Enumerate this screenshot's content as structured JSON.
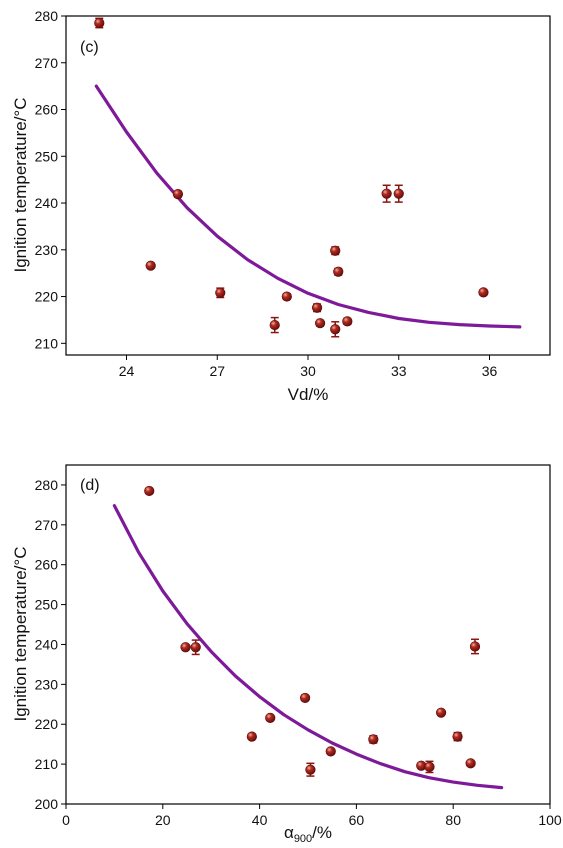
{
  "chart_data": [
    {
      "type": "scatter",
      "panel_label": "(c)",
      "xlabel": "Vd/%",
      "ylabel": "Ignition temperature/°C",
      "xlim": [
        22,
        38
      ],
      "ylim": [
        207.5,
        280
      ],
      "xticks": [
        24,
        27,
        30,
        33,
        36
      ],
      "yticks": [
        210,
        220,
        230,
        240,
        250,
        260,
        270,
        280
      ],
      "grid": false,
      "legend": "none",
      "colors": {
        "points": "#8B1414",
        "fit": "#7E1A9A"
      },
      "series": [
        {
          "kind": "points",
          "x": [
            23.1,
            24.8,
            25.7,
            27.1,
            28.9,
            29.3,
            30.3,
            30.4,
            30.9,
            30.9,
            31.0,
            31.3,
            32.6,
            33.0,
            35.8
          ],
          "y": [
            278.5,
            226.6,
            241.9,
            220.8,
            213.9,
            220.0,
            217.6,
            214.3,
            229.8,
            213.0,
            225.3,
            214.7,
            242.0,
            242.0,
            220.9
          ],
          "yerr": [
            1.0,
            0.5,
            0.6,
            1.0,
            1.6,
            0.6,
            0.8,
            0.6,
            0.8,
            1.6,
            0.7,
            0.6,
            1.8,
            1.8,
            0.5
          ]
        },
        {
          "kind": "fit",
          "x": [
            23.0,
            24.0,
            25.0,
            26.0,
            27.0,
            28.0,
            29.0,
            30.0,
            31.0,
            32.0,
            33.0,
            34.0,
            35.0,
            36.0,
            37.0
          ],
          "y": [
            265.0,
            255.2,
            246.4,
            239.0,
            232.9,
            227.9,
            223.9,
            220.7,
            218.3,
            216.6,
            215.3,
            214.5,
            214.0,
            213.7,
            213.5
          ]
        }
      ]
    },
    {
      "type": "scatter",
      "panel_label": "(d)",
      "xlabel": "α900/%",
      "xlabel_main": "α",
      "xlabel_sub": "900",
      "xlabel_tail": "/%",
      "ylabel": "Ignition temperature/°C",
      "xlim": [
        0,
        100
      ],
      "ylim": [
        200,
        285
      ],
      "xticks": [
        0,
        20,
        40,
        60,
        80,
        100
      ],
      "yticks": [
        200,
        210,
        220,
        230,
        240,
        250,
        260,
        270,
        280
      ],
      "grid": false,
      "legend": "none",
      "colors": {
        "points": "#8B1414",
        "fit": "#7E1A9A"
      },
      "series": [
        {
          "kind": "points",
          "x": [
            17.2,
            24.7,
            26.8,
            38.4,
            42.2,
            49.4,
            50.5,
            54.7,
            63.5,
            73.4,
            75.1,
            77.5,
            80.9,
            83.6,
            84.5
          ],
          "y": [
            278.5,
            239.3,
            239.3,
            216.9,
            221.6,
            226.6,
            208.6,
            213.2,
            216.2,
            209.6,
            209.3,
            222.9,
            216.9,
            210.2,
            239.5
          ],
          "yerr": [
            0.6,
            0.6,
            1.8,
            0.5,
            0.5,
            0.6,
            1.6,
            0.5,
            0.9,
            0.6,
            1.4,
            0.5,
            1.0,
            0.5,
            1.8
          ]
        },
        {
          "kind": "fit",
          "x": [
            10,
            15,
            20,
            25,
            30,
            35,
            40,
            45,
            50,
            55,
            60,
            65,
            70,
            75,
            80,
            85,
            90
          ],
          "y": [
            274.8,
            263.1,
            253.4,
            245.2,
            238.2,
            232.1,
            226.9,
            222.4,
            218.6,
            215.3,
            212.5,
            210.1,
            208.1,
            206.6,
            205.5,
            204.7,
            204.1
          ]
        }
      ]
    }
  ]
}
